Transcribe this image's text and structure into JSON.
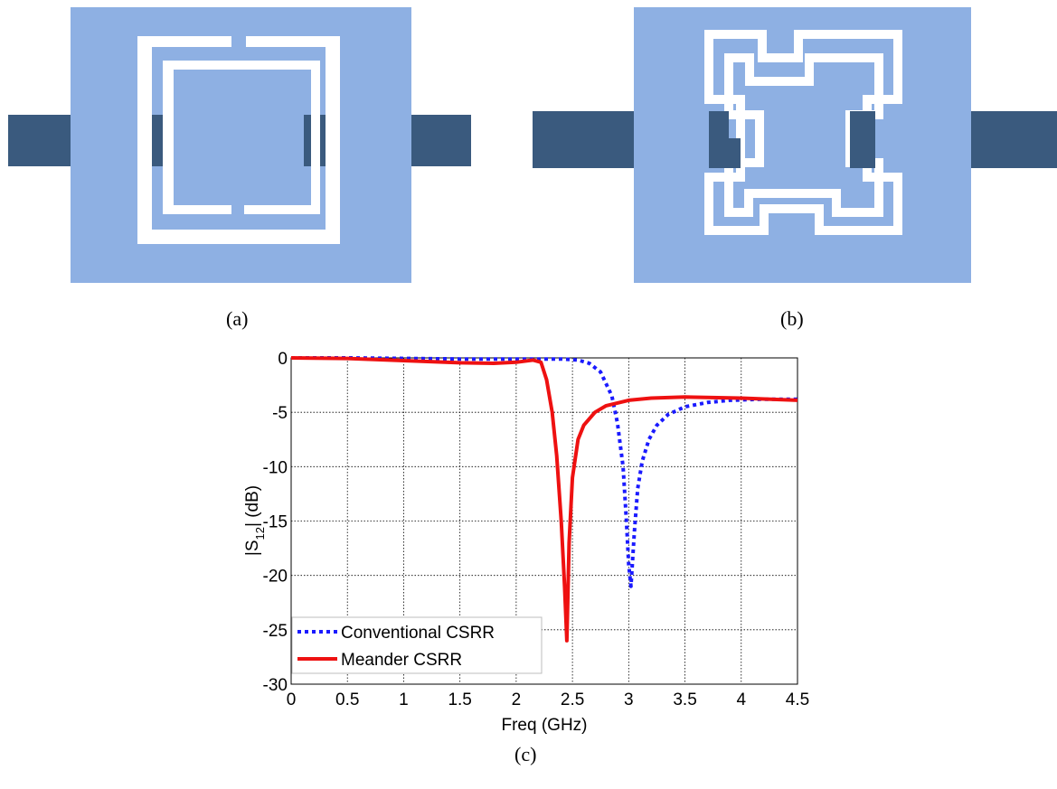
{
  "captions": {
    "a": "(a)",
    "b": "(b)",
    "c": "(c)"
  },
  "colors": {
    "substrate": "#8eb0e3",
    "microstrip": "#3a5a7e",
    "slot": "#ffffff",
    "conventional": "#1a1aff",
    "meander": "#ee1111"
  },
  "chart_data": {
    "type": "line",
    "xlabel": "Freq (GHz)",
    "ylabel": "|S12| (dB)",
    "ylabel_main": "|S",
    "ylabel_sub": "12",
    "ylabel_tail": "| (dB)",
    "xlim": [
      0,
      4.5
    ],
    "ylim": [
      -30,
      0
    ],
    "xticks": [
      0,
      0.5,
      1,
      1.5,
      2,
      2.5,
      3,
      3.5,
      4,
      4.5
    ],
    "xtick_labels": [
      "0",
      "0.5",
      "1",
      "1.5",
      "2",
      "2.5",
      "3",
      "3.5",
      "4",
      "4.5"
    ],
    "yticks": [
      0,
      -5,
      -10,
      -15,
      -20,
      -25,
      -30
    ],
    "ytick_labels": [
      "0",
      "-5",
      "-10",
      "-15",
      "-20",
      "-25",
      "-30"
    ],
    "grid": true,
    "legend_position": "bottom-left",
    "series": [
      {
        "name": "Conventional CSRR",
        "style": "dotted",
        "x": [
          0,
          0.5,
          1,
          1.5,
          2,
          2.2,
          2.4,
          2.55,
          2.65,
          2.75,
          2.85,
          2.9,
          2.95,
          2.98,
          3.0,
          3.02,
          3.05,
          3.08,
          3.12,
          3.18,
          3.25,
          3.35,
          3.5,
          3.7,
          3.9,
          4.2,
          4.5
        ],
        "y": [
          0,
          0,
          -0.05,
          -0.1,
          -0.1,
          -0.1,
          -0.1,
          -0.2,
          -0.5,
          -1.3,
          -3.5,
          -6,
          -10,
          -15,
          -19,
          -21,
          -16,
          -12,
          -9.5,
          -7.5,
          -6.2,
          -5.2,
          -4.5,
          -4.1,
          -3.9,
          -3.8,
          -3.8
        ]
      },
      {
        "name": "Meander CSRR",
        "style": "solid",
        "x": [
          0,
          0.5,
          1,
          1.5,
          1.8,
          2.0,
          2.15,
          2.22,
          2.27,
          2.32,
          2.36,
          2.4,
          2.43,
          2.45,
          2.47,
          2.5,
          2.55,
          2.6,
          2.7,
          2.8,
          3.0,
          3.2,
          3.5,
          4.0,
          4.5
        ],
        "y": [
          0,
          -0.05,
          -0.25,
          -0.45,
          -0.5,
          -0.4,
          -0.2,
          -0.4,
          -2,
          -5,
          -9,
          -15,
          -21,
          -26,
          -17,
          -11,
          -7.5,
          -6.2,
          -5,
          -4.4,
          -3.9,
          -3.7,
          -3.6,
          -3.7,
          -3.9
        ]
      }
    ]
  }
}
